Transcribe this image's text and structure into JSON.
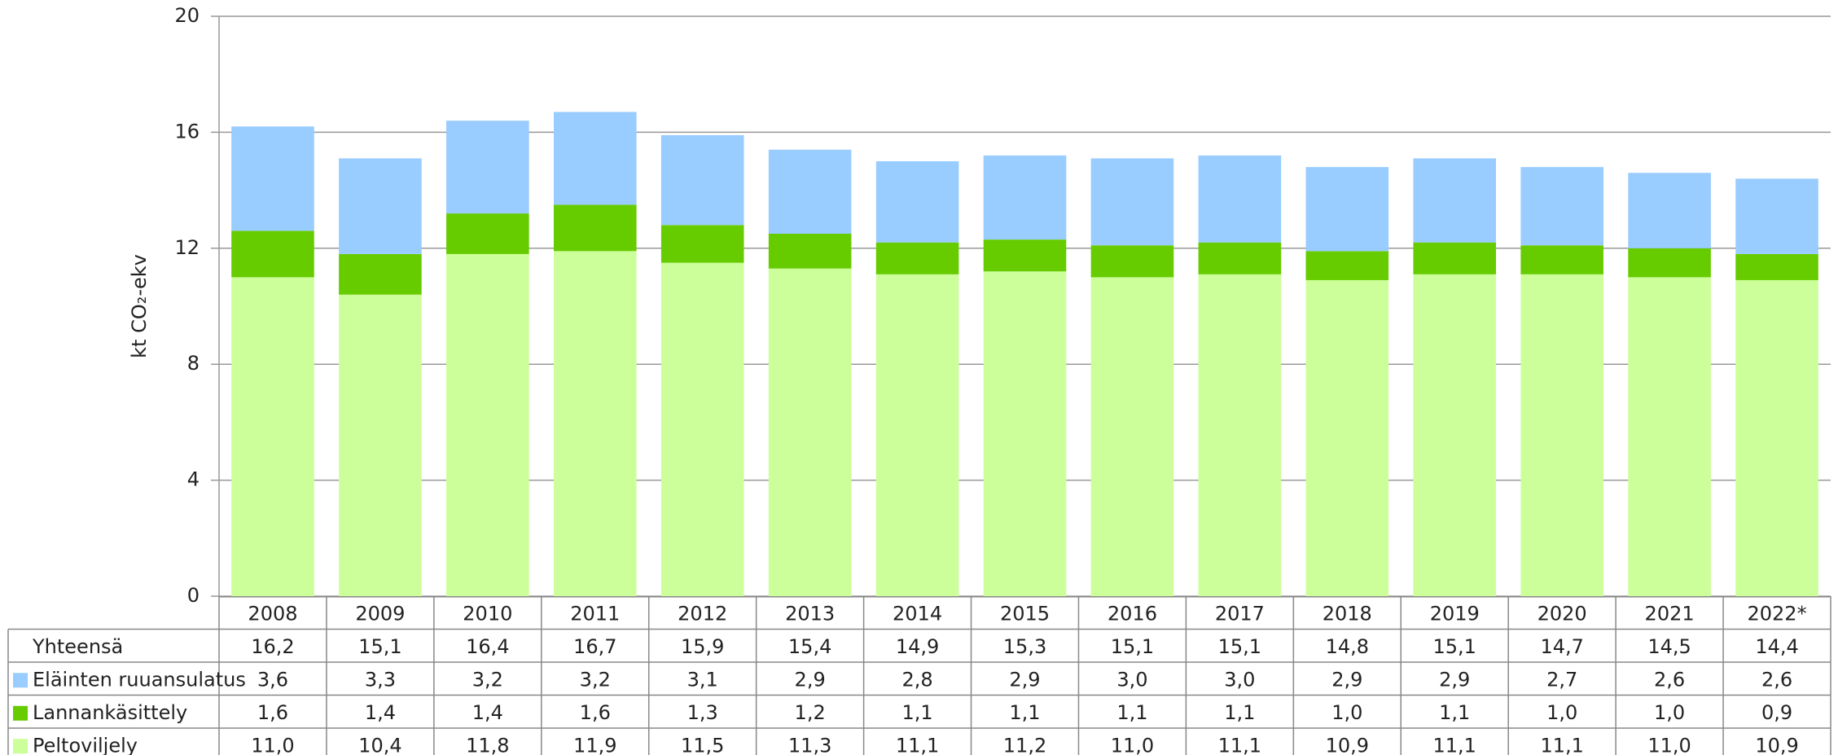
{
  "chart_data": {
    "type": "stacked_bar",
    "ylabel": "kt CO₂-ekv",
    "categories": [
      "2008",
      "2009",
      "2010",
      "2011",
      "2012",
      "2013",
      "2014",
      "2015",
      "2016",
      "2017",
      "2018",
      "2019",
      "2020",
      "2021",
      "2022*"
    ],
    "series": [
      {
        "name": "Peltoviljely",
        "color": "#ccff99",
        "values": [
          11.0,
          10.4,
          11.8,
          11.9,
          11.5,
          11.3,
          11.1,
          11.2,
          11.0,
          11.1,
          10.9,
          11.1,
          11.1,
          11.0,
          10.9
        ],
        "value_labels": [
          "11,0",
          "10,4",
          "11,8",
          "11,9",
          "11,5",
          "11,3",
          "11,1",
          "11,2",
          "11,0",
          "11,1",
          "10,9",
          "11,1",
          "11,1",
          "11,0",
          "10,9"
        ]
      },
      {
        "name": "Lannankäsittely",
        "color": "#66cc00",
        "values": [
          1.6,
          1.4,
          1.4,
          1.6,
          1.3,
          1.2,
          1.1,
          1.1,
          1.1,
          1.1,
          1.0,
          1.1,
          1.0,
          1.0,
          0.9
        ],
        "value_labels": [
          "1,6",
          "1,4",
          "1,4",
          "1,6",
          "1,3",
          "1,2",
          "1,1",
          "1,1",
          "1,1",
          "1,1",
          "1,0",
          "1,1",
          "1,0",
          "1,0",
          "0,9"
        ]
      },
      {
        "name": "Eläinten ruuansulatus",
        "color": "#99ccff",
        "values": [
          3.6,
          3.3,
          3.2,
          3.2,
          3.1,
          2.9,
          2.8,
          2.9,
          3.0,
          3.0,
          2.9,
          2.9,
          2.7,
          2.6,
          2.6
        ],
        "value_labels": [
          "3,6",
          "3,3",
          "3,2",
          "3,2",
          "3,1",
          "2,9",
          "2,8",
          "2,9",
          "3,0",
          "3,0",
          "2,9",
          "2,9",
          "2,7",
          "2,6",
          "2,6"
        ]
      }
    ],
    "totals": {
      "name": "Yhteensä",
      "values": [
        16.2,
        15.1,
        16.4,
        16.7,
        15.9,
        15.4,
        14.9,
        15.3,
        15.1,
        15.1,
        14.8,
        15.1,
        14.7,
        14.5,
        14.4
      ],
      "value_labels": [
        "16,2",
        "15,1",
        "16,4",
        "16,7",
        "15,9",
        "15,4",
        "14,9",
        "15,3",
        "15,1",
        "15,1",
        "14,8",
        "15,1",
        "14,7",
        "14,5",
        "14,4"
      ]
    },
    "ylim": [
      0,
      20
    ],
    "yticks": [
      0,
      4,
      8,
      12,
      16,
      20
    ],
    "grid": true
  }
}
